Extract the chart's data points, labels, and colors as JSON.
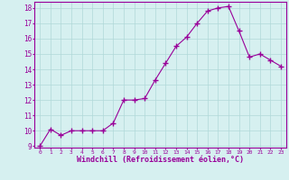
{
  "x": [
    0,
    1,
    2,
    3,
    4,
    5,
    6,
    7,
    8,
    9,
    10,
    11,
    12,
    13,
    14,
    15,
    16,
    17,
    18,
    19,
    20,
    21,
    22,
    23
  ],
  "y": [
    9.0,
    10.1,
    9.7,
    10.0,
    10.0,
    10.0,
    10.0,
    10.5,
    12.0,
    12.0,
    12.1,
    13.3,
    14.4,
    15.5,
    16.1,
    17.0,
    17.8,
    18.0,
    18.1,
    16.5,
    14.8,
    15.0,
    14.6,
    14.2
  ],
  "line_color": "#990099",
  "marker": "+",
  "marker_size": 4,
  "background_color": "#d6f0f0",
  "grid_color": "#b0d8d8",
  "xlabel": "Windchill (Refroidissement éolien,°C)",
  "xlabel_color": "#990099",
  "tick_color": "#990099",
  "ylim": [
    9,
    18
  ],
  "xlim": [
    -0.5,
    23.5
  ],
  "yticks": [
    9,
    10,
    11,
    12,
    13,
    14,
    15,
    16,
    17,
    18
  ],
  "xticks": [
    0,
    1,
    2,
    3,
    4,
    5,
    6,
    7,
    8,
    9,
    10,
    11,
    12,
    13,
    14,
    15,
    16,
    17,
    18,
    19,
    20,
    21,
    22,
    23
  ],
  "spine_color": "#990099",
  "font_family": "monospace",
  "xtick_fontsize": 4.5,
  "ytick_fontsize": 5.5,
  "xlabel_fontsize": 6.0
}
